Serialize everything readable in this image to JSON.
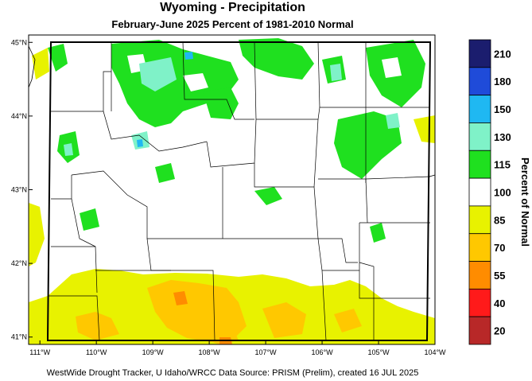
{
  "title": "Wyoming - Precipitation",
  "subtitle": "February-June 2025  Percent of 1981-2010 Normal",
  "credit": "WestWide Drought Tracker, U Idaho/WRCC Data Source: PRISM (Prelim), created 16 JUL 2025",
  "map": {
    "region": "Wyoming",
    "lon_range": [
      -111.2,
      -104.0
    ],
    "lat_range": [
      40.9,
      45.1
    ],
    "lon_ticks": [
      {
        "value": -111,
        "label": "111°W"
      },
      {
        "value": -110,
        "label": "110°W"
      },
      {
        "value": -109,
        "label": "109°W"
      },
      {
        "value": -108,
        "label": "108°W"
      },
      {
        "value": -107,
        "label": "107°W"
      },
      {
        "value": -106,
        "label": "106°W"
      },
      {
        "value": -105,
        "label": "105°W"
      },
      {
        "value": -104,
        "label": "104°W"
      }
    ],
    "lat_ticks": [
      {
        "value": 45,
        "label": "45°N"
      },
      {
        "value": 44,
        "label": "44°N"
      },
      {
        "value": 43,
        "label": "43°N"
      },
      {
        "value": 42,
        "label": "42°N"
      },
      {
        "value": 41,
        "label": "41°N"
      }
    ]
  },
  "colorbar": {
    "title": "Percent of Normal",
    "labels": [
      "210",
      "180",
      "150",
      "130",
      "115",
      "100",
      "85",
      "70",
      "55",
      "40",
      "20"
    ],
    "colors": [
      "#1b1d6e",
      "#1f4bd9",
      "#1fb8f2",
      "#7ff2c8",
      "#1fe01f",
      "#ffffff",
      "#e8f200",
      "#ffc800",
      "#ff8c00",
      "#ff1a1a",
      "#b82828"
    ]
  }
}
